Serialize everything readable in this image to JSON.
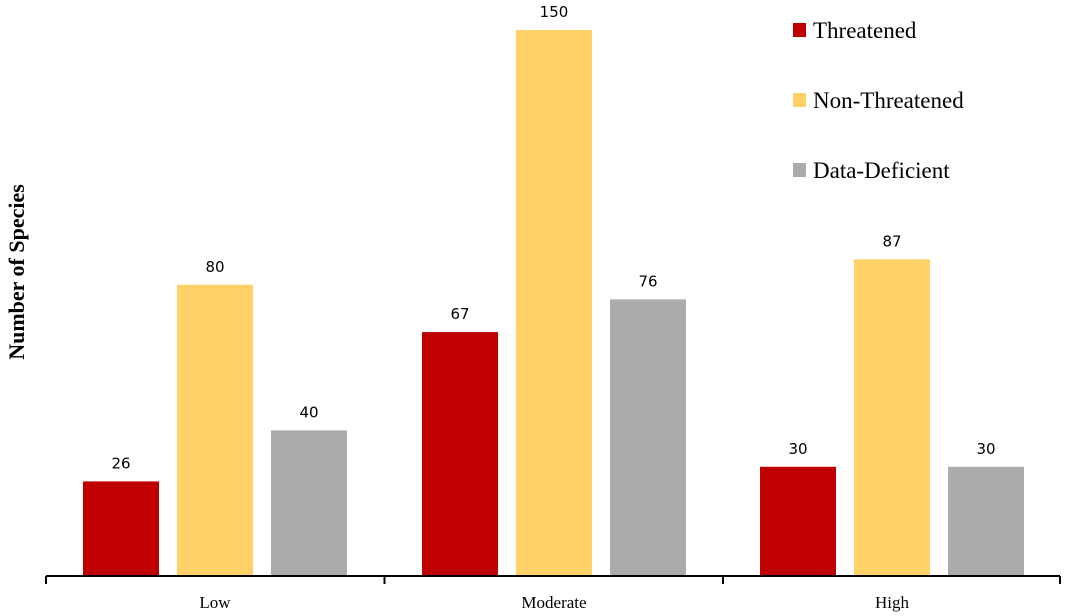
{
  "chart_data": {
    "type": "bar",
    "ylabel": "Number of Species",
    "xlabel": "",
    "categories": [
      "Low",
      "Moderate",
      "High"
    ],
    "ylim": [
      0,
      150
    ],
    "grid": false,
    "legend_position": "top-right",
    "series": [
      {
        "name": "Threatened",
        "color": "#c00000",
        "values": [
          26,
          67,
          30
        ]
      },
      {
        "name": "Non-Threatened",
        "color": "#ffd166",
        "values": [
          80,
          150,
          87
        ]
      },
      {
        "name": "Data-Deficient",
        "color": "#ababab",
        "values": [
          40,
          76,
          30
        ]
      }
    ]
  }
}
